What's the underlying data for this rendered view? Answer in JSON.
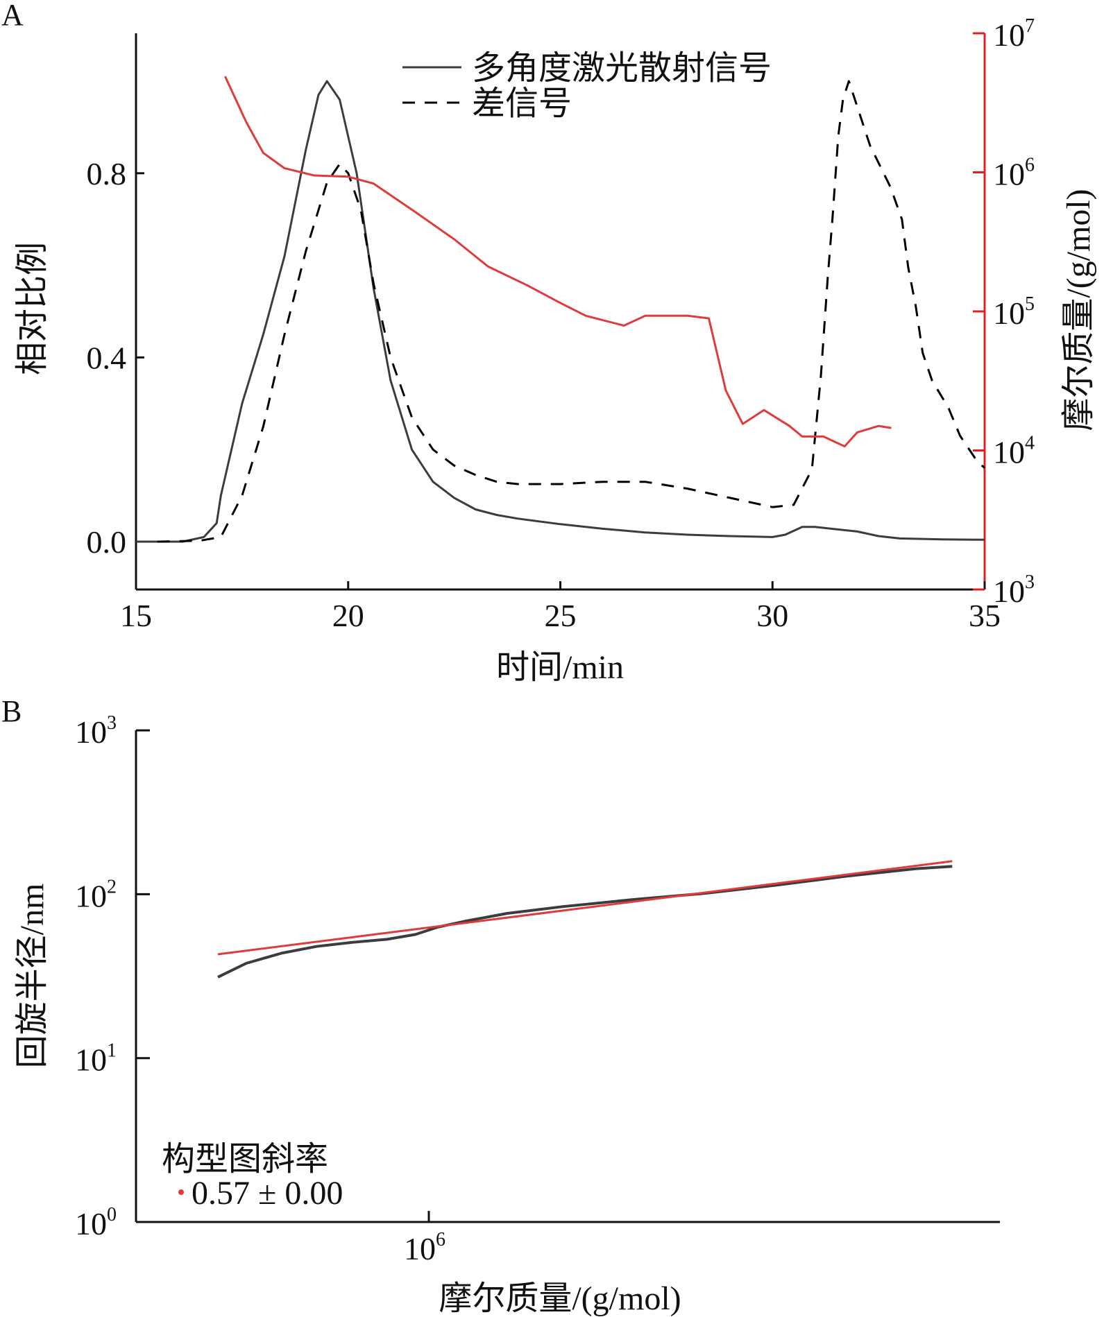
{
  "chart_data": [
    {
      "panel_label": "A",
      "type": "line",
      "xlabel": "时间/min",
      "ylabel": "相对比例",
      "y2label": "摩尔质量/(g/mol)",
      "xlim": [
        15,
        35
      ],
      "ylim": [
        -0.1,
        1.1
      ],
      "y2lim": [
        1000,
        10000000
      ],
      "y2scale": "log",
      "xticks": [
        "15",
        "20",
        "25",
        "30",
        "35"
      ],
      "yticks": [
        "0.0",
        "0.4",
        "0.8"
      ],
      "y2ticks": [
        {
          "base": "10",
          "exp": "3"
        },
        {
          "base": "10",
          "exp": "4"
        },
        {
          "base": "10",
          "exp": "5"
        },
        {
          "base": "10",
          "exp": "6"
        },
        {
          "base": "10",
          "exp": "7"
        }
      ],
      "legend_position": "top-right",
      "colors": {
        "axis2": "#e02020",
        "molar_mass": "#e03a3a",
        "mals": "#3c3c3c",
        "diff": "#000000"
      },
      "series": [
        {
          "name": "多角度激光散射信号",
          "style": "solid",
          "axis": "left",
          "x": [
            15,
            16.1,
            16.6,
            16.9,
            17.0,
            17.5,
            18.0,
            18.5,
            19.0,
            19.3,
            19.5,
            19.8,
            20.2,
            20.6,
            21.0,
            21.5,
            22.0,
            22.5,
            23.0,
            23.5,
            24.0,
            25.0,
            26.0,
            27.0,
            28.0,
            29.0,
            30.0,
            30.3,
            30.7,
            31.0,
            31.5,
            32.0,
            32.5,
            33.0,
            34.0,
            35.0
          ],
          "y": [
            0,
            0,
            0.01,
            0.04,
            0.1,
            0.3,
            0.45,
            0.62,
            0.85,
            0.97,
            1.0,
            0.96,
            0.8,
            0.55,
            0.35,
            0.2,
            0.13,
            0.095,
            0.07,
            0.058,
            0.05,
            0.038,
            0.028,
            0.02,
            0.015,
            0.012,
            0.01,
            0.015,
            0.032,
            0.032,
            0.027,
            0.022,
            0.012,
            0.007,
            0.005,
            0.004
          ]
        },
        {
          "name": "差信号",
          "style": "dashed",
          "axis": "left",
          "x": [
            15.5,
            16.5,
            17.0,
            17.5,
            18.0,
            18.5,
            19.0,
            19.5,
            19.8,
            20.0,
            20.3,
            20.6,
            21.0,
            21.5,
            22.0,
            22.5,
            23.0,
            23.5,
            24.0,
            25.0,
            26.0,
            27.0,
            28.0,
            29.0,
            30.0,
            30.5,
            30.93,
            31.14,
            31.3,
            31.42,
            31.55,
            31.66,
            31.8,
            32.3,
            32.78,
            33.05,
            33.2,
            33.38,
            33.54,
            33.76,
            34.15,
            34.42,
            34.82,
            35.0
          ],
          "y": [
            0,
            0.002,
            0.01,
            0.1,
            0.25,
            0.45,
            0.63,
            0.78,
            0.82,
            0.8,
            0.72,
            0.56,
            0.4,
            0.27,
            0.2,
            0.165,
            0.145,
            0.13,
            0.125,
            0.125,
            0.13,
            0.13,
            0.115,
            0.095,
            0.075,
            0.08,
            0.157,
            0.36,
            0.57,
            0.71,
            0.88,
            0.96,
            1.0,
            0.86,
            0.77,
            0.7,
            0.595,
            0.51,
            0.41,
            0.35,
            0.29,
            0.23,
            0.175,
            0.16
          ]
        },
        {
          "style": "solid",
          "axis": "right",
          "x": [
            17.1,
            17.6,
            18.0,
            18.5,
            19.2,
            20.0,
            20.6,
            21.5,
            22.5,
            23.3,
            24.2,
            25.0,
            25.6,
            26.5,
            27.0,
            28.0,
            28.5,
            28.9,
            29.3,
            29.8,
            30.4,
            30.7,
            31.2,
            31.7,
            32.0,
            32.5,
            32.8
          ],
          "y": [
            4900000,
            2290000,
            1380000,
            1070000,
            950000,
            930000,
            830000,
            540000,
            330000,
            210000,
            155000,
            115000,
            93000,
            79000,
            93000,
            93000,
            89000,
            27000,
            15500,
            19500,
            15000,
            12600,
            12600,
            10700,
            13500,
            15000,
            14500
          ]
        }
      ]
    },
    {
      "panel_label": "B",
      "type": "line",
      "xlabel": "摩尔质量/(g/mol)",
      "ylabel": "回旋半径/nm",
      "xscale": "log",
      "yscale": "log",
      "xlim": [
        400000,
        6000000
      ],
      "ylim": [
        1,
        1000
      ],
      "xticks": [
        {
          "base": "10",
          "exp": "6"
        }
      ],
      "yticks": [
        {
          "base": "10",
          "exp": "0"
        },
        {
          "base": "10",
          "exp": "1"
        },
        {
          "base": "10",
          "exp": "2"
        },
        {
          "base": "10",
          "exp": "3"
        }
      ],
      "legend_title": "构型图斜率",
      "legend_value": "0.57 ± 0.00",
      "legend_position": "bottom-left",
      "colors": {
        "data": "#3c3c3c",
        "fit": "#e03a3a"
      },
      "series": [
        {
          "style": "solid",
          "role": "data",
          "x": [
            516000,
            564000,
            630000,
            703000,
            785000,
            877000,
            959000,
            1026000,
            1119000,
            1279000,
            1524000,
            1901000,
            2371000,
            2958000,
            3690000,
            4603000,
            5164000
          ],
          "y": [
            31.2,
            37.9,
            43.7,
            48.0,
            50.8,
            53.1,
            56.8,
            62.8,
            68.4,
            76.4,
            84.1,
            92.9,
            101.2,
            113.2,
            128.5,
            143.2,
            147.9
          ]
        },
        {
          "style": "solid",
          "role": "fit",
          "slope": 0.57,
          "x": [
            516000,
            5164000
          ],
          "y": [
            43,
            159
          ]
        }
      ]
    }
  ]
}
